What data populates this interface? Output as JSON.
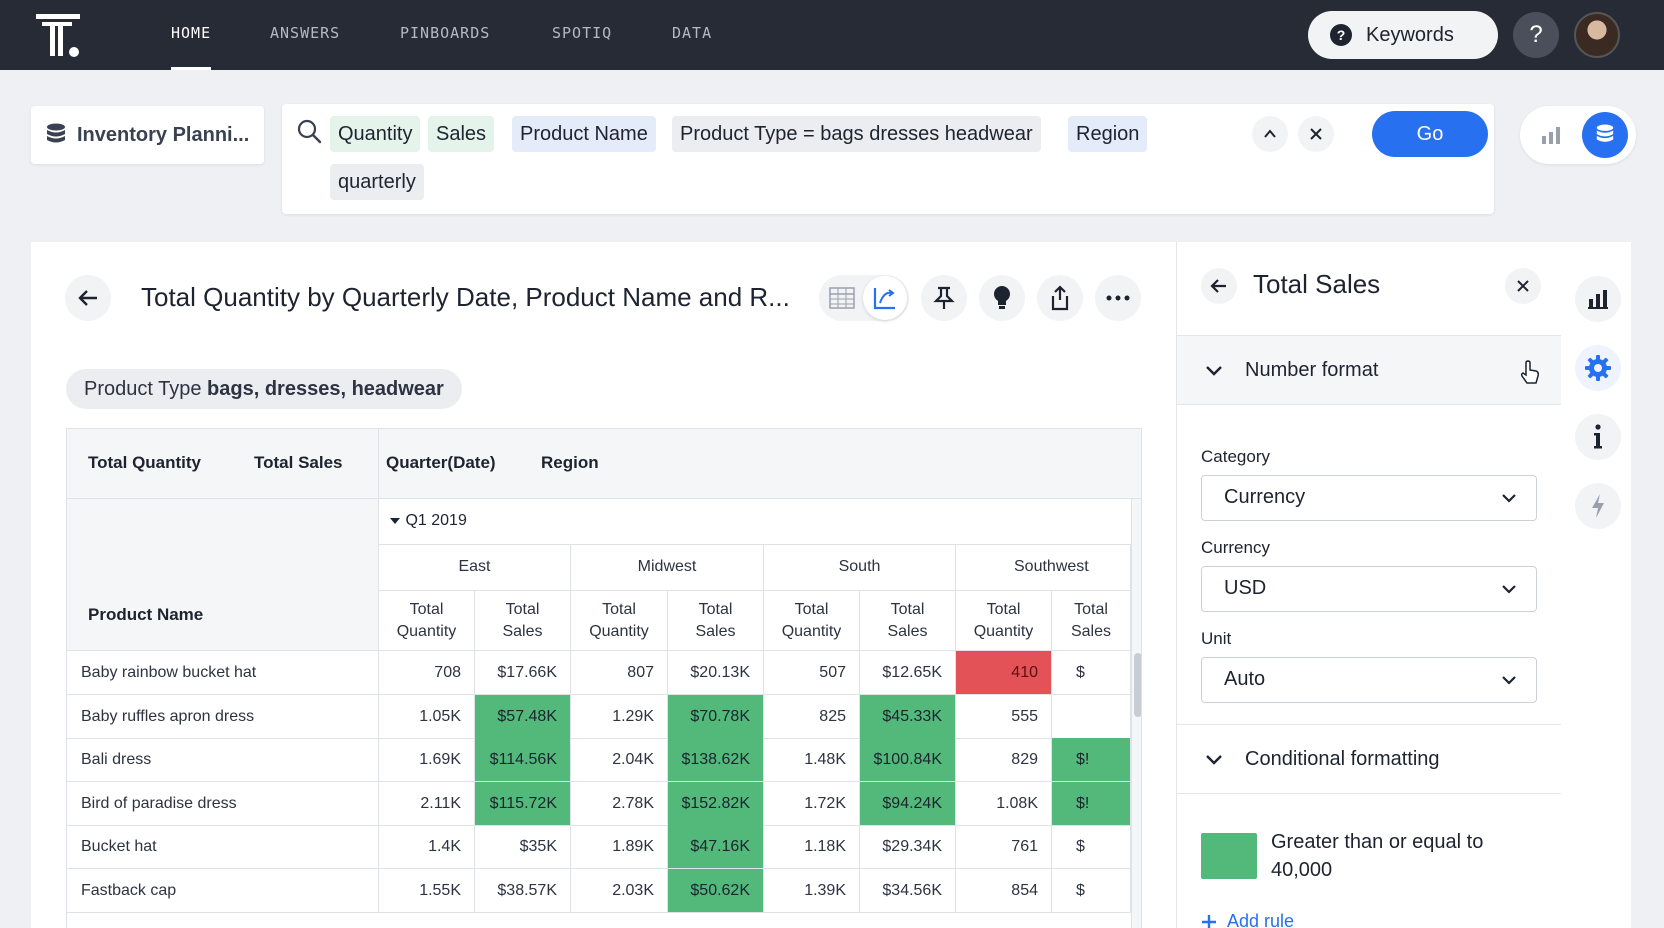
{
  "nav": {
    "items": [
      "HOME",
      "ANSWERS",
      "PINBOARDS",
      "SPOTIQ",
      "DATA"
    ],
    "keywords_label": "Keywords",
    "help_label": "?"
  },
  "search": {
    "source_name": "Inventory Planni...",
    "tokens": [
      "Quantity",
      "Sales",
      "Product Name",
      "Product Type = bags dresses headwear",
      "Region",
      "quarterly"
    ],
    "go_label": "Go"
  },
  "answer": {
    "title": "Total Quantity by Quarterly Date, Product Name and R...",
    "filter_prefix": "Product Type",
    "filter_value": "bags, dresses, headwear"
  },
  "table": {
    "left_headers": [
      "Total Quantity",
      "Total Sales"
    ],
    "right_headers": [
      "Quarter(Date)",
      "Region"
    ],
    "row_header": "Product Name",
    "quarter": "Q1 2019",
    "regions": [
      "East",
      "Midwest",
      "South",
      "Southwest"
    ],
    "metric_qty": [
      "Total",
      "Quantity"
    ],
    "metric_sales": [
      "Total",
      "Sales"
    ],
    "rows": [
      {
        "name": "Baby rainbow bucket hat",
        "cells": [
          "708",
          "$17.66K",
          "807",
          "$20.13K",
          "507",
          "$12.65K",
          "410",
          "$"
        ]
      },
      {
        "name": "Baby ruffles apron dress",
        "cells": [
          "1.05K",
          "$57.48K",
          "1.29K",
          "$70.78K",
          "825",
          "$45.33K",
          "555",
          ""
        ]
      },
      {
        "name": "Bali dress",
        "cells": [
          "1.69K",
          "$114.56K",
          "2.04K",
          "$138.62K",
          "1.48K",
          "$100.84K",
          "829",
          "$!"
        ]
      },
      {
        "name": "Bird of paradise dress",
        "cells": [
          "2.11K",
          "$115.72K",
          "2.78K",
          "$152.82K",
          "1.72K",
          "$94.24K",
          "1.08K",
          "$!"
        ]
      },
      {
        "name": "Bucket hat",
        "cells": [
          "1.4K",
          "$35K",
          "1.89K",
          "$47.16K",
          "1.18K",
          "$29.34K",
          "761",
          "$"
        ]
      },
      {
        "name": "Fastback cap",
        "cells": [
          "1.55K",
          "$38.57K",
          "2.03K",
          "$50.62K",
          "1.39K",
          "$34.56K",
          "854",
          "$"
        ]
      }
    ],
    "cell_colors": [
      [
        "",
        "",
        "",
        "",
        "",
        "",
        "red",
        ""
      ],
      [
        "",
        "green",
        "",
        "green",
        "",
        "green",
        "",
        ""
      ],
      [
        "",
        "green",
        "",
        "green",
        "",
        "green",
        "",
        "green"
      ],
      [
        "",
        "green",
        "",
        "green",
        "",
        "green",
        "",
        "green"
      ],
      [
        "",
        "",
        "",
        "green",
        "",
        "",
        "",
        ""
      ],
      [
        "",
        "",
        "",
        "green",
        "",
        "",
        "",
        ""
      ]
    ]
  },
  "panel": {
    "title": "Total Sales",
    "number_format_label": "Number format",
    "category_label": "Category",
    "category_value": "Currency",
    "currency_label": "Currency",
    "currency_value": "USD",
    "unit_label": "Unit",
    "unit_value": "Auto",
    "conditional_label": "Conditional formatting",
    "rule_text": "Greater than or equal to 40,000",
    "add_rule_label": "Add rule"
  },
  "colors": {
    "accent": "#2770ef",
    "positive": "#53b97b",
    "negative": "#e25256",
    "nav_bg": "#262b36"
  }
}
